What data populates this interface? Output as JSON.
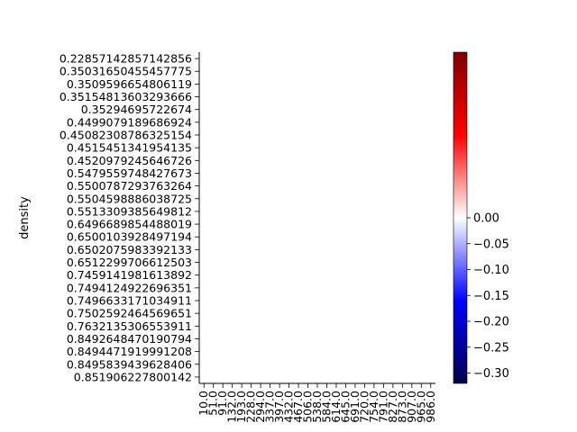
{
  "chart_data": {
    "type": "heatmap",
    "title": "",
    "xlabel": "",
    "ylabel": "density",
    "y_categories": [
      "0.22857142857142856",
      "0.35031650455457775",
      "0.3509596654806119",
      "0.35154813603293666",
      "0.35294695722674",
      "0.4499079189686924",
      "0.45082308786325154",
      "0.4515451341954135",
      "0.4520979245646726",
      "0.5479559748427673",
      "0.5500787293763264",
      "0.5504598886038725",
      "0.5513309385649812",
      "0.6496689854488019",
      "0.6500103928497194",
      "0.6502075983392133",
      "0.6512299706612503",
      "0.7459141981613892",
      "0.7494124922696351",
      "0.7496633171034911",
      "0.7502592464569651",
      "0.7632135306553911",
      "0.8492648470190794",
      "0.8494471919991208",
      "0.8495839439628406",
      "0.851906227800142"
    ],
    "x_categories": [
      "10.0",
      "51.0",
      "91.0",
      "132.0",
      "193.0",
      "228.0",
      "294.0",
      "337.0",
      "397.0",
      "432.0",
      "467.0",
      "506.0",
      "538.0",
      "584.0",
      "614.0",
      "645.0",
      "691.0",
      "720.0",
      "754.0",
      "791.0",
      "827.0",
      "873.0",
      "907.0",
      "965.0",
      "986.0"
    ],
    "colorbar": {
      "colormap": "seismic",
      "min": -0.32,
      "max": 0.32,
      "ticks": [
        0.0,
        -0.05,
        -0.1,
        -0.15,
        -0.2,
        -0.25,
        -0.3
      ],
      "tick_labels": [
        "0.00",
        "−0.05",
        "−0.10",
        "−0.15",
        "−0.20",
        "−0.25",
        "−0.30"
      ]
    },
    "values_note": "",
    "grid": false,
    "legend": "colorbar-right"
  }
}
